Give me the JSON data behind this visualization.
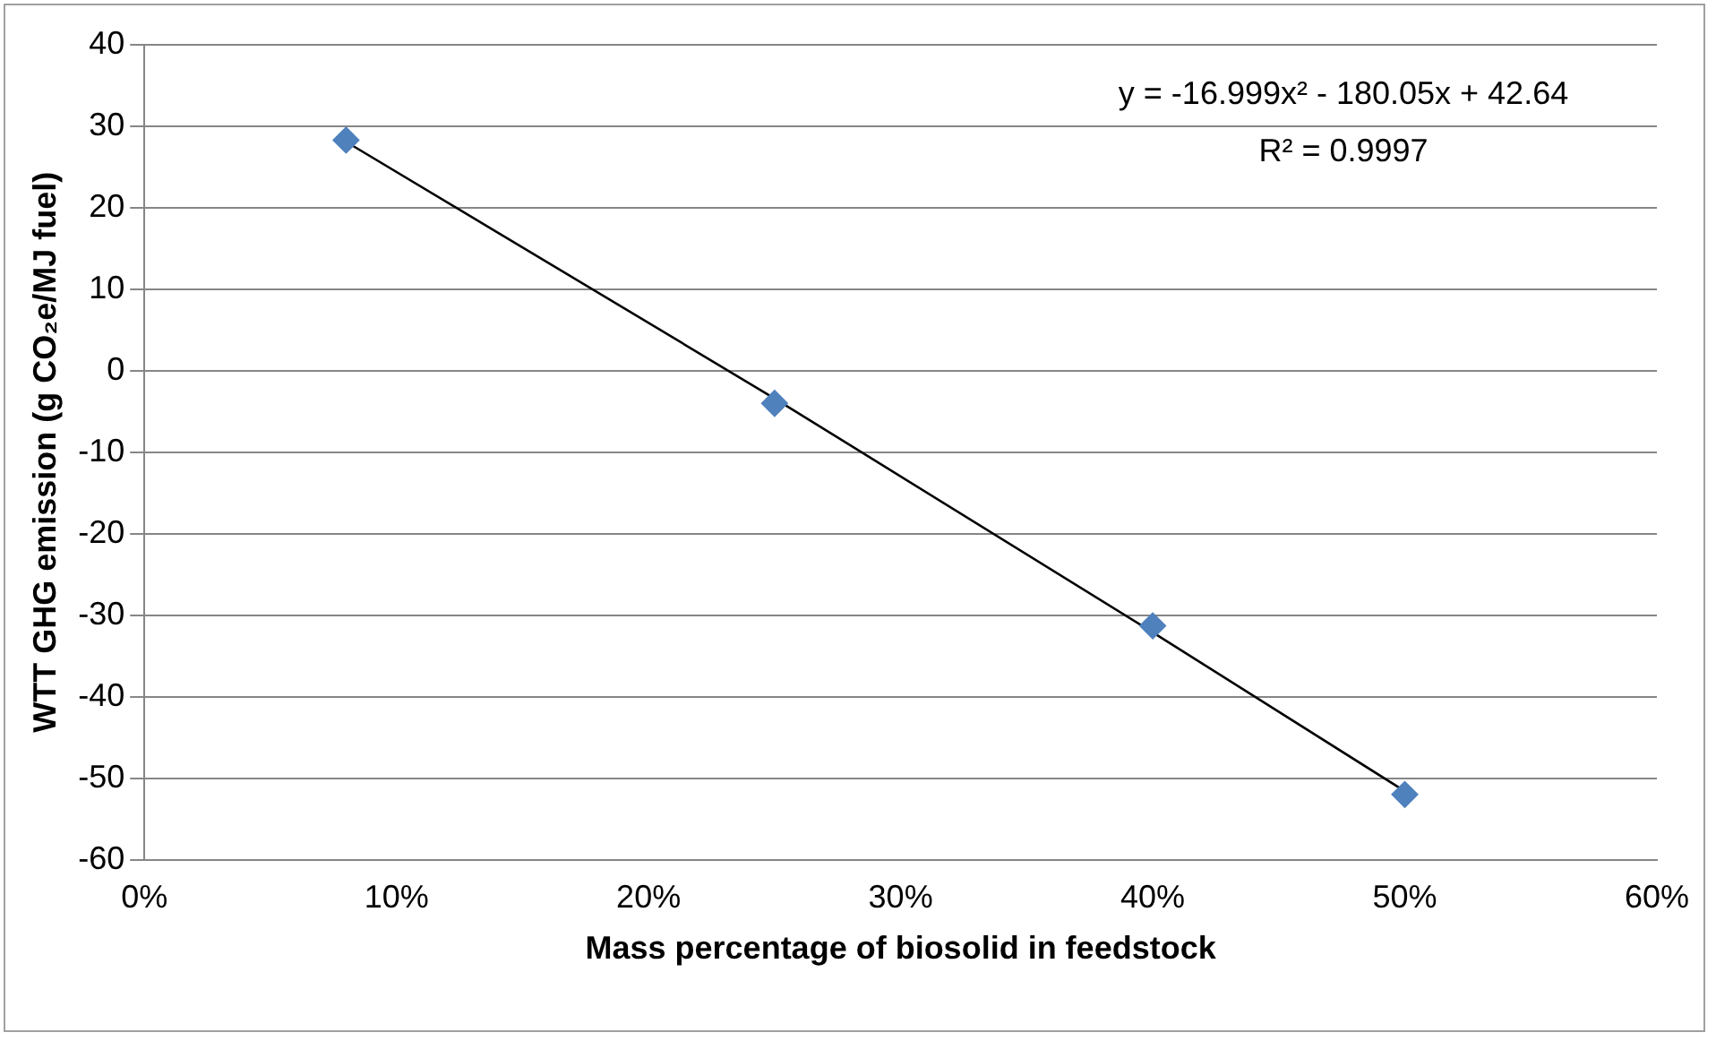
{
  "chart_data": {
    "type": "scatter",
    "xlabel": "Mass percentage of biosolid in feedstock",
    "ylabel": "WTT GHG emission (g CO₂e/MJ fuel)",
    "series": [
      {
        "color": "#4f81bd",
        "marker": "diamond",
        "x": [
          8,
          25,
          40,
          50
        ],
        "values": [
          28.3,
          -4,
          -31.3,
          -52
        ]
      },
      {
        "type": "line",
        "color": "#000000",
        "marker": "none",
        "x": [
          8,
          25,
          40,
          50
        ],
        "values": [
          28.1,
          -3.4,
          -32.1,
          -51.6
        ]
      }
    ],
    "xlim": [
      0,
      60
    ],
    "xticks": [
      {
        "value": 0,
        "label": "0%"
      },
      {
        "value": 10,
        "label": "10%"
      },
      {
        "value": 20,
        "label": "20%"
      },
      {
        "value": 30,
        "label": "30%"
      },
      {
        "value": 40,
        "label": "40%"
      },
      {
        "value": 50,
        "label": "50%"
      },
      {
        "value": 60,
        "label": "60%"
      }
    ],
    "ylim": [
      -60,
      40
    ],
    "yticks": [
      -60,
      -50,
      -40,
      -30,
      -20,
      -10,
      0,
      10,
      20,
      30,
      40
    ],
    "grid": "y",
    "legend": false,
    "annotations": [
      "y = -16.999x² - 180.05x + 42.64",
      "R² = 0.9997"
    ]
  }
}
